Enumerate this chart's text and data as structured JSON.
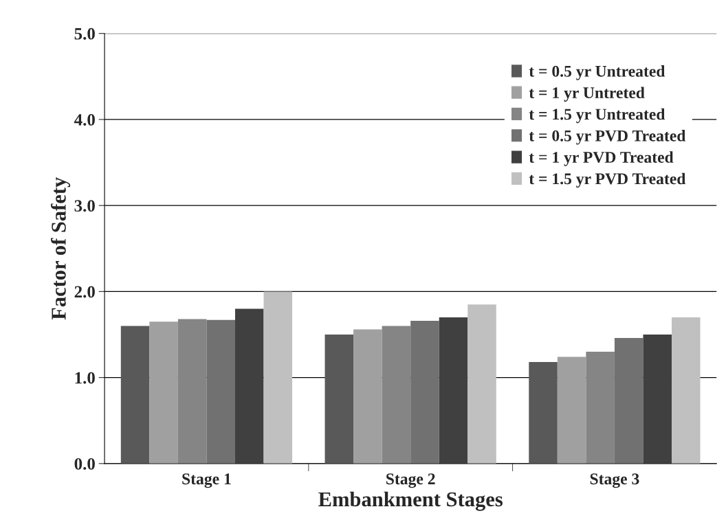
{
  "chart_data": {
    "type": "bar",
    "xlabel": "Embankment Stages",
    "ylabel": "Factor of Safety",
    "categories": [
      "Stage 1",
      "Stage 2",
      "Stage 3"
    ],
    "series": [
      {
        "name": "t = 0.5 yr Untreated",
        "color": "#595959",
        "values": [
          1.6,
          1.5,
          1.18
        ]
      },
      {
        "name": "t = 1 yr Untreted",
        "color": "#a0a0a0",
        "values": [
          1.65,
          1.56,
          1.24
        ]
      },
      {
        "name": "t = 1.5 yr Untreated",
        "color": "#858585",
        "values": [
          1.68,
          1.6,
          1.3
        ]
      },
      {
        "name": "t = 0.5 yr PVD Treated",
        "color": "#717171",
        "values": [
          1.67,
          1.66,
          1.46
        ]
      },
      {
        "name": "t = 1 yr PVD Treated",
        "color": "#404040",
        "values": [
          1.8,
          1.7,
          1.5
        ]
      },
      {
        "name": "t = 1.5 yr PVD Treated",
        "color": "#c0c0c0",
        "values": [
          2.0,
          1.85,
          1.7
        ]
      }
    ],
    "ylim": [
      0,
      5
    ],
    "yticks": [
      {
        "value": 0,
        "label": "0.0"
      },
      {
        "value": 1,
        "label": "1.0"
      },
      {
        "value": 2,
        "label": "2.0"
      },
      {
        "value": 3,
        "label": "3.0"
      },
      {
        "value": 4,
        "label": "4.0"
      },
      {
        "value": 5,
        "label": "5.0"
      }
    ],
    "grid": "y",
    "legend": "top right"
  }
}
